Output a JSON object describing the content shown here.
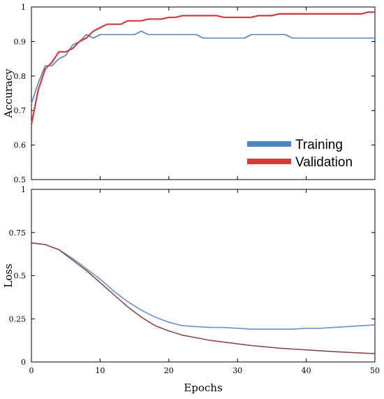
{
  "chart_data": [
    {
      "type": "line",
      "xlabel": "",
      "ylabel": "Accuracy",
      "xlim": [
        0,
        50
      ],
      "ylim": [
        0.5,
        1.0
      ],
      "x_ticks": [
        0,
        10,
        20,
        30,
        40,
        50
      ],
      "y_ticks": [
        0.5,
        0.6,
        0.7,
        0.8,
        0.9,
        1.0
      ],
      "y_tick_labels": [
        "0.5",
        "0.6",
        "0.7",
        "0.8",
        "0.9",
        "1"
      ],
      "show_x_tick_labels": false,
      "legend_position": "bottom-right",
      "grid": false,
      "series": [
        {
          "name": "Training",
          "color": "#4a86c8",
          "x": [
            0,
            1,
            2,
            3,
            4,
            5,
            6,
            7,
            8,
            9,
            10,
            11,
            12,
            13,
            14,
            15,
            16,
            17,
            18,
            19,
            20,
            21,
            22,
            23,
            24,
            25,
            26,
            27,
            28,
            29,
            30,
            31,
            32,
            33,
            34,
            35,
            36,
            37,
            38,
            39,
            40,
            41,
            42,
            43,
            44,
            45,
            46,
            47,
            48,
            49,
            50
          ],
          "values": [
            0.72,
            0.78,
            0.83,
            0.83,
            0.85,
            0.86,
            0.89,
            0.9,
            0.92,
            0.91,
            0.92,
            0.92,
            0.92,
            0.92,
            0.92,
            0.92,
            0.93,
            0.92,
            0.92,
            0.92,
            0.92,
            0.92,
            0.92,
            0.92,
            0.92,
            0.91,
            0.91,
            0.91,
            0.91,
            0.91,
            0.91,
            0.91,
            0.92,
            0.92,
            0.92,
            0.92,
            0.92,
            0.92,
            0.91,
            0.91,
            0.91,
            0.91,
            0.91,
            0.91,
            0.91,
            0.91,
            0.91,
            0.91,
            0.91,
            0.91,
            0.91
          ]
        },
        {
          "name": "Validation",
          "color": "#d63a3a",
          "x": [
            0,
            1,
            2,
            3,
            4,
            5,
            6,
            7,
            8,
            9,
            10,
            11,
            12,
            13,
            14,
            15,
            16,
            17,
            18,
            19,
            20,
            21,
            22,
            23,
            24,
            25,
            26,
            27,
            28,
            29,
            30,
            31,
            32,
            33,
            34,
            35,
            36,
            37,
            38,
            39,
            40,
            41,
            42,
            43,
            44,
            45,
            46,
            47,
            48,
            49,
            50
          ],
          "values": [
            0.66,
            0.76,
            0.82,
            0.84,
            0.87,
            0.87,
            0.88,
            0.9,
            0.91,
            0.93,
            0.94,
            0.95,
            0.95,
            0.95,
            0.96,
            0.96,
            0.96,
            0.965,
            0.965,
            0.965,
            0.97,
            0.97,
            0.975,
            0.975,
            0.975,
            0.975,
            0.975,
            0.975,
            0.97,
            0.97,
            0.97,
            0.97,
            0.97,
            0.975,
            0.975,
            0.975,
            0.98,
            0.98,
            0.98,
            0.98,
            0.98,
            0.98,
            0.98,
            0.98,
            0.98,
            0.98,
            0.98,
            0.98,
            0.98,
            0.985,
            0.985
          ]
        }
      ]
    },
    {
      "type": "line",
      "xlabel": "Epochs",
      "ylabel": "Loss",
      "xlim": [
        0,
        50
      ],
      "ylim": [
        0,
        1
      ],
      "x_ticks": [
        0,
        10,
        20,
        30,
        40,
        50
      ],
      "y_ticks": [
        0,
        0.25,
        0.5,
        0.75,
        1
      ],
      "y_tick_labels": [
        "0",
        "0.25",
        "0.5",
        "0.75",
        "1"
      ],
      "show_x_tick_labels": true,
      "grid": false,
      "series": [
        {
          "color": "#6a8fd0",
          "x": [
            0,
            2,
            4,
            6,
            8,
            10,
            12,
            14,
            16,
            18,
            20,
            22,
            24,
            26,
            28,
            30,
            32,
            34,
            36,
            38,
            40,
            42,
            44,
            46,
            48,
            50
          ],
          "values": [
            0.69,
            0.68,
            0.65,
            0.6,
            0.54,
            0.48,
            0.41,
            0.35,
            0.3,
            0.26,
            0.23,
            0.21,
            0.205,
            0.2,
            0.2,
            0.195,
            0.19,
            0.19,
            0.19,
            0.19,
            0.195,
            0.195,
            0.2,
            0.205,
            0.21,
            0.215
          ]
        },
        {
          "color": "#8b4a4a",
          "x": [
            0,
            2,
            4,
            6,
            8,
            10,
            12,
            14,
            16,
            18,
            20,
            22,
            24,
            26,
            28,
            30,
            32,
            34,
            36,
            38,
            40,
            42,
            44,
            46,
            48,
            50
          ],
          "values": [
            0.69,
            0.68,
            0.65,
            0.59,
            0.53,
            0.46,
            0.39,
            0.32,
            0.26,
            0.21,
            0.18,
            0.155,
            0.14,
            0.125,
            0.115,
            0.105,
            0.095,
            0.088,
            0.08,
            0.075,
            0.07,
            0.065,
            0.06,
            0.056,
            0.052,
            0.048
          ]
        }
      ]
    }
  ]
}
